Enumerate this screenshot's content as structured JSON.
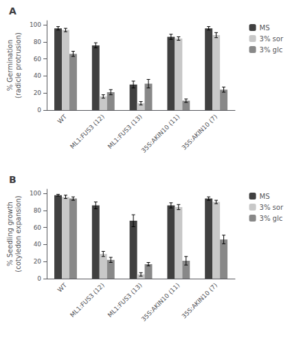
{
  "chart_data": [
    {
      "type": "bar",
      "title": "A",
      "ylabel": "% Germination\n(radicle protrusion)",
      "categories": [
        "WT",
        "ML1:FUS3 (12)",
        "ML1:FUS3 (13)",
        "35S:AKIN10 (11)",
        "35S:AKIN10 (7)"
      ],
      "series": [
        {
          "name": "MS",
          "color": "#404040",
          "values": [
            96,
            76,
            30,
            86,
            96
          ],
          "errors": [
            2,
            3,
            4,
            3,
            2
          ]
        },
        {
          "name": "3% sor",
          "color": "#c8c8c8",
          "values": [
            94,
            16,
            8,
            84,
            88
          ],
          "errors": [
            2,
            2,
            2,
            2,
            3
          ]
        },
        {
          "name": "3% glc",
          "color": "#888888",
          "values": [
            66,
            21,
            31,
            11,
            24
          ],
          "errors": [
            3,
            3,
            5,
            2,
            3
          ]
        }
      ],
      "ylim": [
        0,
        105
      ],
      "yticks": [
        0,
        20,
        40,
        60,
        80,
        100
      ],
      "grid": false,
      "legend": "right"
    },
    {
      "type": "bar",
      "title": "B",
      "ylabel": "% Seedling growth\n(cotyledon expansion)",
      "categories": [
        "WT",
        "ML1:FUS3 (12)",
        "ML1:FUS3 (13)",
        "35S:AKIN10 (11)",
        "35S:AKIN10 (7)"
      ],
      "series": [
        {
          "name": "MS",
          "color": "#404040",
          "values": [
            98,
            86,
            68,
            86,
            94
          ],
          "errors": [
            1,
            4,
            7,
            3,
            2
          ]
        },
        {
          "name": "3% sor",
          "color": "#c8c8c8",
          "values": [
            96,
            29,
            5,
            84,
            90
          ],
          "errors": [
            2,
            3,
            2,
            3,
            2
          ]
        },
        {
          "name": "3% glc",
          "color": "#888888",
          "values": [
            94,
            22,
            17,
            21,
            46
          ],
          "errors": [
            2,
            3,
            2,
            5,
            5
          ]
        }
      ],
      "ylim": [
        0,
        105
      ],
      "yticks": [
        0,
        20,
        40,
        60,
        80,
        100
      ],
      "grid": false,
      "legend": "right"
    }
  ]
}
